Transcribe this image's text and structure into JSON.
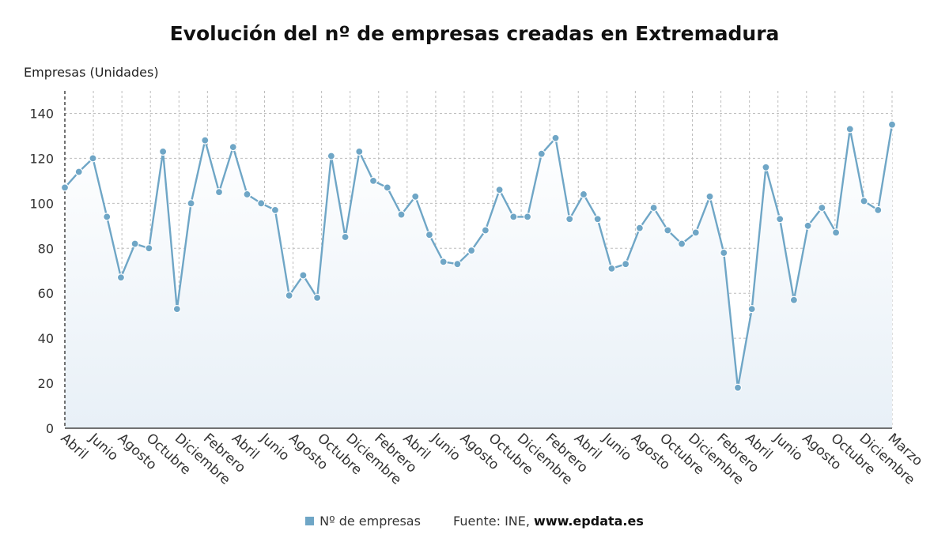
{
  "chart_data": {
    "type": "line",
    "title": "Evolución del nº de empresas creadas en Extremadura",
    "ylabel": "Empresas (Unidades)",
    "ylim": [
      0,
      150
    ],
    "yticks": [
      0,
      20,
      40,
      60,
      80,
      100,
      120,
      140
    ],
    "grid": true,
    "tick_labels": [
      "Abril",
      "Junio",
      "Agosto",
      "Octubre",
      "Diciembre",
      "Febrero",
      "Abril",
      "Junio",
      "Agosto",
      "Octubre",
      "Diciembre",
      "Febrero",
      "Abril",
      "Junio",
      "Agosto",
      "Octubre",
      "Diciembre",
      "Febrero",
      "Abril",
      "Junio",
      "Agosto",
      "Octubre",
      "Diciembre",
      "Febrero",
      "Abril",
      "Junio",
      "Agosto",
      "Octubre",
      "Diciembre",
      "Marzo"
    ],
    "series": [
      {
        "name": "Nº de empresas",
        "color": "#6fa6c6",
        "values": [
          107,
          114,
          120,
          94,
          67,
          82,
          80,
          123,
          53,
          100,
          128,
          105,
          125,
          104,
          100,
          97,
          59,
          68,
          58,
          121,
          85,
          123,
          110,
          107,
          95,
          103,
          86,
          74,
          73,
          79,
          88,
          106,
          94,
          94,
          122,
          129,
          93,
          104,
          93,
          71,
          73,
          89,
          98,
          88,
          82,
          87,
          103,
          78,
          18,
          53,
          116,
          93,
          57,
          90,
          98,
          87,
          133,
          101,
          97,
          135
        ]
      }
    ],
    "legend_position": "bottom"
  },
  "source": {
    "prefix": "Fuente: INE, ",
    "site": "www.epdata.es"
  }
}
